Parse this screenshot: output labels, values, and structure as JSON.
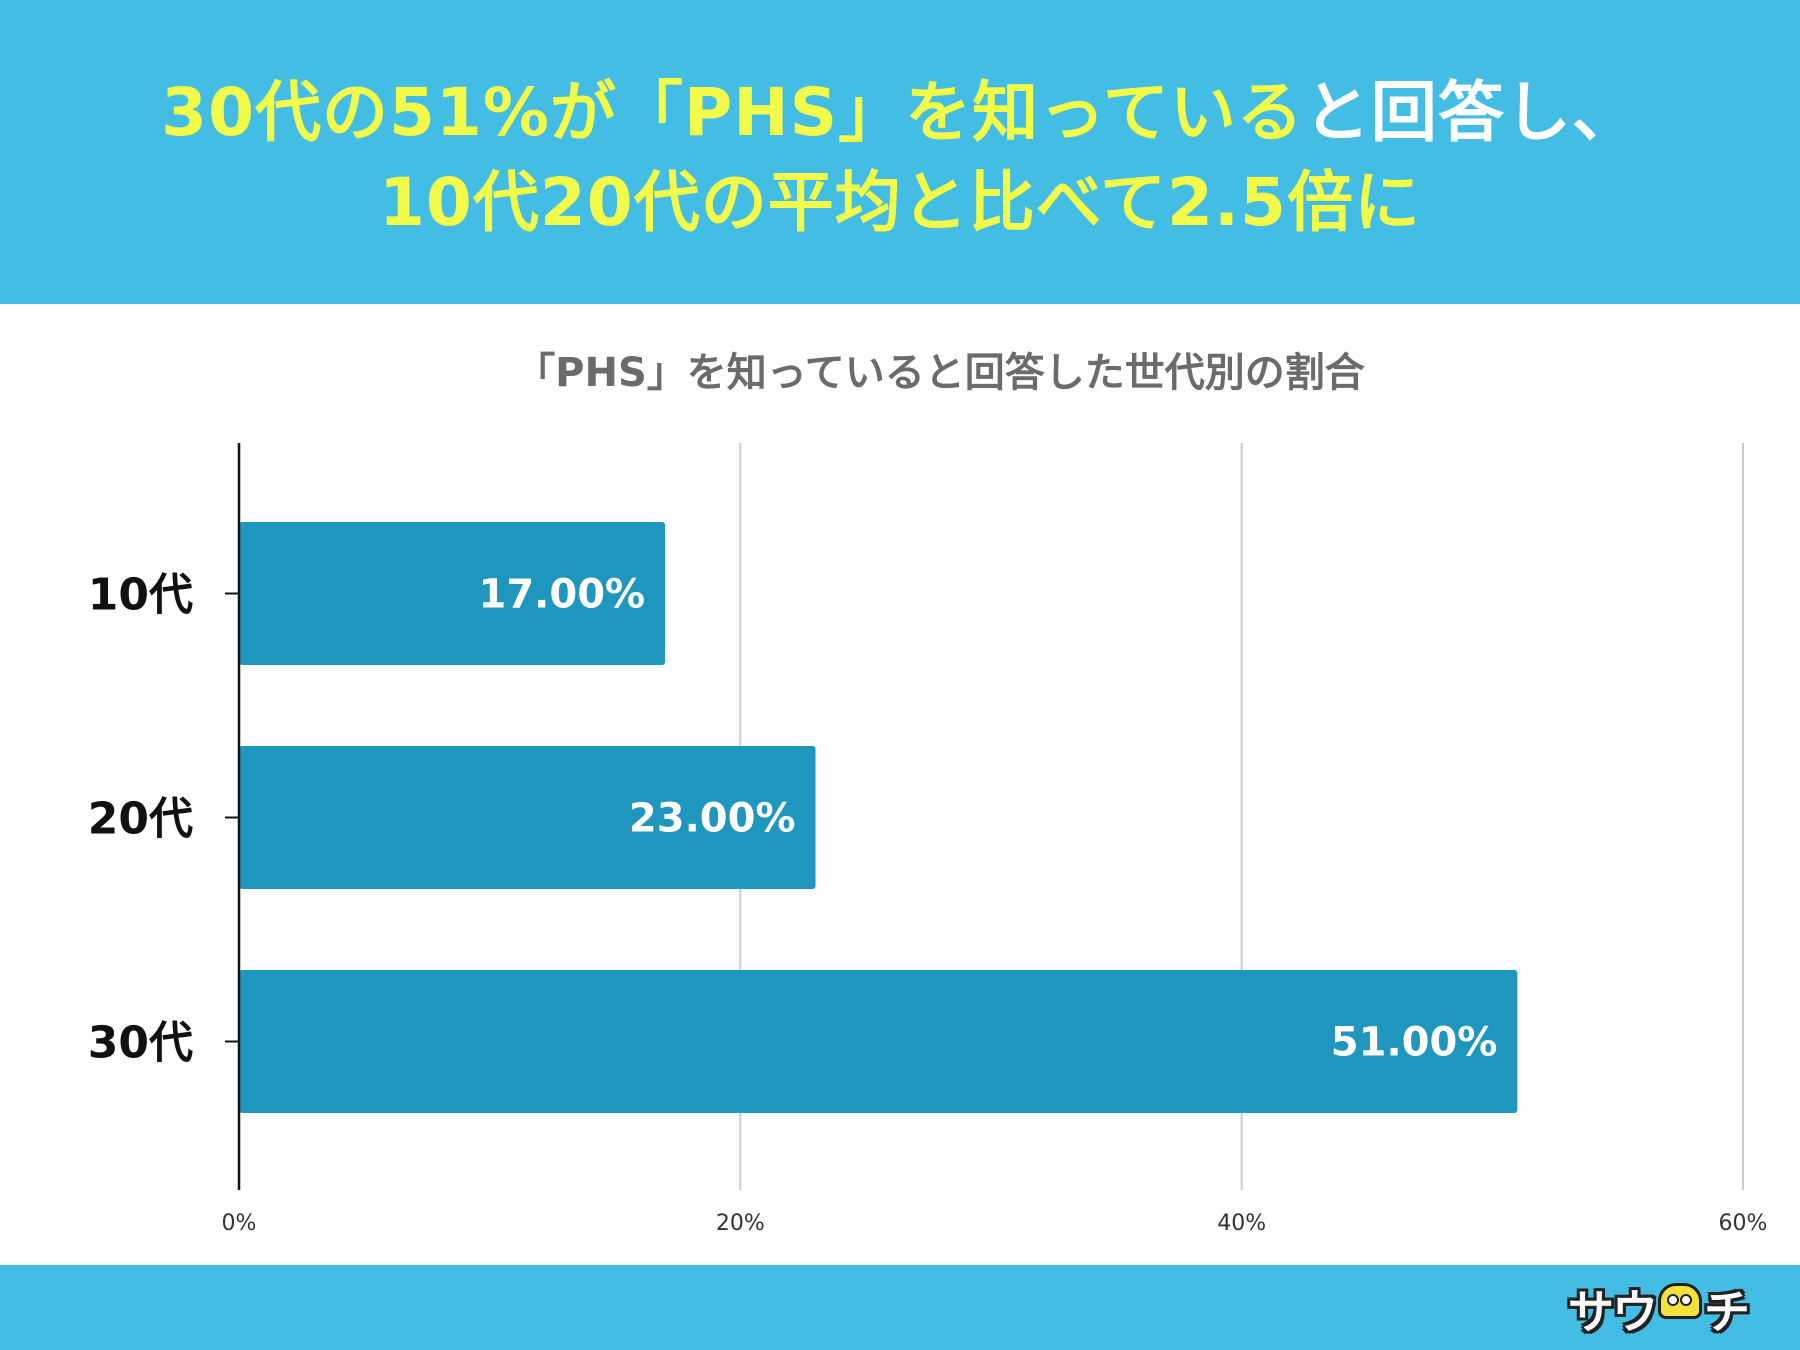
{
  "header": {
    "headline_line1_a": "30代の51%が「PHS」を知っている",
    "headline_line1_b": "と回答し、",
    "headline_line2": "10代20代の平均と比べて2.5倍に"
  },
  "footer": {
    "logo_text_a": "サウ",
    "logo_text_b": "チ"
  },
  "colors": {
    "header_bg": "#43bde4",
    "headline": "#f2fb4a",
    "bar": "#1e96bd",
    "title": "#6b6b6b"
  },
  "chart_data": {
    "type": "bar",
    "orientation": "horizontal",
    "title": "「PHS」を知っていると回答した世代別の割合",
    "categories": [
      "10代",
      "20代",
      "30代"
    ],
    "values": [
      17,
      23,
      51
    ],
    "data_labels": [
      "17.00%",
      "23.00%",
      "51.00%"
    ],
    "xlim": [
      0,
      60
    ],
    "x_ticks": [
      0,
      20,
      40,
      60
    ],
    "x_tick_labels": [
      "0%",
      "20%",
      "40%",
      "60%"
    ],
    "grid": true,
    "legend": "none"
  }
}
